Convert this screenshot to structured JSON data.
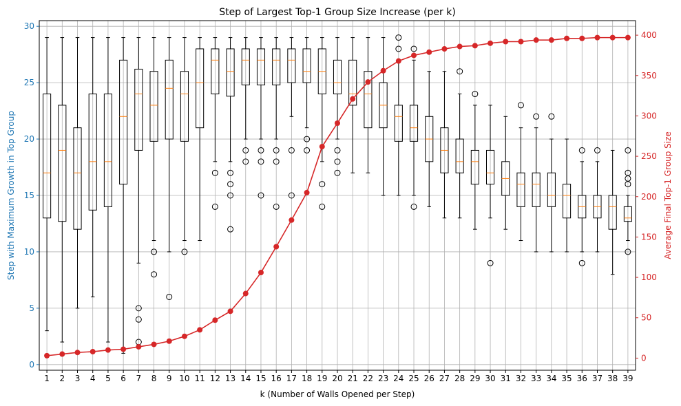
{
  "chart_data": {
    "type": "boxplot+line",
    "title": "Step of Largest Top-1 Group Size Increase (per k)",
    "xlabel": "k (Number of Walls Opened per Step)",
    "ylabel_left": "Step with Maximum Growth in Top Group",
    "ylabel_right": "Average Final Top-1 Group Size",
    "categories": [
      "1",
      "2",
      "3",
      "4",
      "5",
      "6",
      "7",
      "8",
      "9",
      "10",
      "11",
      "12",
      "13",
      "14",
      "15",
      "16",
      "17",
      "18",
      "19",
      "20",
      "21",
      "22",
      "23",
      "24",
      "25",
      "26",
      "27",
      "28",
      "29",
      "30",
      "31",
      "32",
      "33",
      "34",
      "35",
      "36",
      "37",
      "38",
      "39"
    ],
    "ylim_left": [
      -0.5,
      30.5
    ],
    "yticks_left": [
      0,
      5,
      10,
      15,
      20,
      25,
      30
    ],
    "ylim_right": [
      -15,
      418
    ],
    "yticks_right": [
      0,
      50,
      100,
      150,
      200,
      250,
      300,
      350,
      400
    ],
    "grid": true,
    "colors": {
      "left_axis": "#1f77b4",
      "right_axis": "#d62728",
      "median": "#ff7f0e",
      "box": "#000000",
      "grid": "#b0b0b0"
    },
    "boxes": [
      {
        "k": 1,
        "whislo": 3,
        "q1": 13,
        "med": 17,
        "q3": 24,
        "whishi": 29,
        "fliers": []
      },
      {
        "k": 2,
        "whislo": 2,
        "q1": 12.7,
        "med": 19,
        "q3": 23,
        "whishi": 29,
        "fliers": []
      },
      {
        "k": 3,
        "whislo": 5,
        "q1": 12,
        "med": 17,
        "q3": 21,
        "whishi": 29,
        "fliers": []
      },
      {
        "k": 4,
        "whislo": 6,
        "q1": 13.7,
        "med": 18,
        "q3": 24,
        "whishi": 29,
        "fliers": []
      },
      {
        "k": 5,
        "whislo": 2,
        "q1": 14,
        "med": 18,
        "q3": 24,
        "whishi": 29,
        "fliers": []
      },
      {
        "k": 6,
        "whislo": 1,
        "q1": 16,
        "med": 22,
        "q3": 27,
        "whishi": 29,
        "fliers": []
      },
      {
        "k": 7,
        "whislo": 9,
        "q1": 19,
        "med": 24,
        "q3": 26.2,
        "whishi": 29,
        "fliers": [
          5,
          4,
          2
        ]
      },
      {
        "k": 8,
        "whislo": 11,
        "q1": 19.8,
        "med": 23,
        "q3": 26,
        "whishi": 29,
        "fliers": [
          10,
          8
        ]
      },
      {
        "k": 9,
        "whislo": 10,
        "q1": 20,
        "med": 24.5,
        "q3": 27,
        "whishi": 29,
        "fliers": [
          6
        ]
      },
      {
        "k": 10,
        "whislo": 11,
        "q1": 19.8,
        "med": 24,
        "q3": 26,
        "whishi": 29,
        "fliers": [
          10
        ]
      },
      {
        "k": 11,
        "whislo": 11,
        "q1": 21,
        "med": 25,
        "q3": 28,
        "whishi": 29,
        "fliers": []
      },
      {
        "k": 12,
        "whislo": 18,
        "q1": 24,
        "med": 27,
        "q3": 28,
        "whishi": 29,
        "fliers": [
          17,
          14
        ]
      },
      {
        "k": 13,
        "whislo": 18,
        "q1": 23.8,
        "med": 26,
        "q3": 28,
        "whishi": 29,
        "fliers": [
          17,
          16,
          15,
          12
        ]
      },
      {
        "k": 14,
        "whislo": 20,
        "q1": 24.8,
        "med": 27,
        "q3": 28,
        "whishi": 29,
        "fliers": [
          19,
          18
        ]
      },
      {
        "k": 15,
        "whislo": 20,
        "q1": 24.8,
        "med": 27,
        "q3": 28,
        "whishi": 29,
        "fliers": [
          19,
          18,
          15
        ]
      },
      {
        "k": 16,
        "whislo": 20,
        "q1": 24.8,
        "med": 27,
        "q3": 28,
        "whishi": 29,
        "fliers": [
          19,
          18,
          14
        ]
      },
      {
        "k": 17,
        "whislo": 22,
        "q1": 25,
        "med": 27,
        "q3": 28,
        "whishi": 29,
        "fliers": [
          19,
          15
        ]
      },
      {
        "k": 18,
        "whislo": 21,
        "q1": 25,
        "med": 26,
        "q3": 28,
        "whishi": 29,
        "fliers": [
          20,
          19
        ]
      },
      {
        "k": 19,
        "whislo": 18,
        "q1": 24,
        "med": 26,
        "q3": 28,
        "whishi": 29,
        "fliers": [
          16,
          14
        ]
      },
      {
        "k": 20,
        "whislo": 20,
        "q1": 24,
        "med": 25,
        "q3": 27,
        "whishi": 29,
        "fliers": [
          19,
          18,
          17
        ]
      },
      {
        "k": 21,
        "whislo": 17,
        "q1": 23,
        "med": 24,
        "q3": 27,
        "whishi": 29,
        "fliers": []
      },
      {
        "k": 22,
        "whislo": 17,
        "q1": 21,
        "med": 24,
        "q3": 26,
        "whishi": 29,
        "fliers": []
      },
      {
        "k": 23,
        "whislo": 15,
        "q1": 21,
        "med": 23,
        "q3": 25,
        "whishi": 29,
        "fliers": []
      },
      {
        "k": 24,
        "whislo": 15,
        "q1": 19.8,
        "med": 22,
        "q3": 23,
        "whishi": 27,
        "fliers": [
          29,
          28
        ]
      },
      {
        "k": 25,
        "whislo": 15,
        "q1": 19.8,
        "med": 21,
        "q3": 23,
        "whishi": 27,
        "fliers": [
          28,
          14
        ]
      },
      {
        "k": 26,
        "whislo": 14,
        "q1": 18,
        "med": 20,
        "q3": 22,
        "whishi": 26,
        "fliers": []
      },
      {
        "k": 27,
        "whislo": 13,
        "q1": 17,
        "med": 19,
        "q3": 21,
        "whishi": 26,
        "fliers": []
      },
      {
        "k": 28,
        "whislo": 13,
        "q1": 17,
        "med": 18,
        "q3": 20,
        "whishi": 24,
        "fliers": [
          26
        ]
      },
      {
        "k": 29,
        "whislo": 12,
        "q1": 16,
        "med": 18,
        "q3": 19,
        "whishi": 23,
        "fliers": [
          24
        ]
      },
      {
        "k": 30,
        "whislo": 13,
        "q1": 16,
        "med": 17,
        "q3": 19,
        "whishi": 23,
        "fliers": [
          9
        ]
      },
      {
        "k": 31,
        "whislo": 12,
        "q1": 15,
        "med": 16.5,
        "q3": 18,
        "whishi": 22,
        "fliers": []
      },
      {
        "k": 32,
        "whislo": 11,
        "q1": 14,
        "med": 16,
        "q3": 17,
        "whishi": 21,
        "fliers": [
          23
        ]
      },
      {
        "k": 33,
        "whislo": 10,
        "q1": 14,
        "med": 16,
        "q3": 17,
        "whishi": 21,
        "fliers": [
          22
        ]
      },
      {
        "k": 34,
        "whislo": 10,
        "q1": 14,
        "med": 15,
        "q3": 17,
        "whishi": 20,
        "fliers": [
          22
        ]
      },
      {
        "k": 35,
        "whislo": 10,
        "q1": 13,
        "med": 15,
        "q3": 16,
        "whishi": 20,
        "fliers": []
      },
      {
        "k": 36,
        "whislo": 10,
        "q1": 13,
        "med": 14,
        "q3": 15,
        "whishi": 18,
        "fliers": [
          19,
          9
        ]
      },
      {
        "k": 37,
        "whislo": 10,
        "q1": 13,
        "med": 14,
        "q3": 15,
        "whishi": 18,
        "fliers": [
          19
        ]
      },
      {
        "k": 38,
        "whislo": 8,
        "q1": 12,
        "med": 14,
        "q3": 15,
        "whishi": 19,
        "fliers": []
      },
      {
        "k": 39,
        "whislo": 11,
        "q1": 12.7,
        "med": 13,
        "q3": 14,
        "whishi": 15,
        "fliers": [
          19,
          17,
          16.5,
          16,
          10
        ]
      }
    ],
    "series": [
      {
        "name": "Average Final Top-1 Group Size",
        "axis": "right",
        "values": [
          3,
          5,
          7,
          8,
          10,
          11,
          14,
          17,
          21,
          27,
          35,
          47,
          58,
          80,
          106,
          138,
          171,
          205,
          262,
          291,
          321,
          342,
          356,
          368,
          375,
          379,
          383,
          386,
          387,
          390,
          392,
          392,
          394,
          394,
          396,
          396,
          397,
          397,
          397
        ]
      }
    ]
  }
}
